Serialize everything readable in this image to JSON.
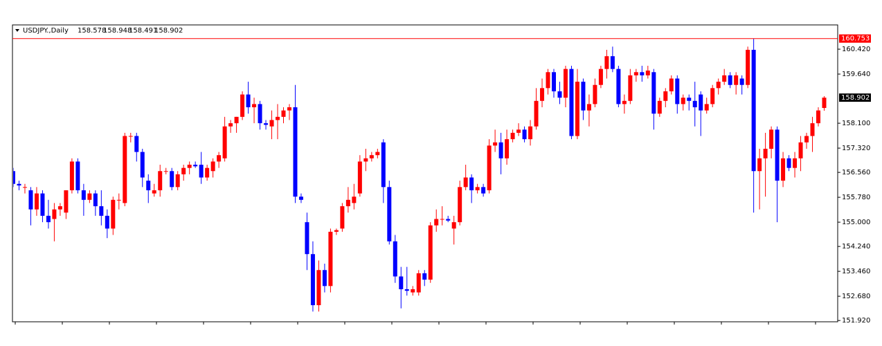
{
  "chart_data": {
    "type": "candlestick",
    "symbol": "USDJPY.,Daily",
    "up_color": "#ff0000",
    "down_color": "#0000ff",
    "ylim": [
      151.88,
      161.18
    ],
    "yticks": [
      {
        "value": 160.42,
        "label": "160.420"
      },
      {
        "value": 159.64,
        "label": "159.640"
      },
      {
        "value": 158.1,
        "label": "158.100"
      },
      {
        "value": 157.32,
        "label": "157.320"
      },
      {
        "value": 156.56,
        "label": "156.560"
      },
      {
        "value": 155.78,
        "label": "155.780"
      },
      {
        "value": 155,
        "label": "155.000"
      },
      {
        "value": 154.24,
        "label": "154.240"
      },
      {
        "value": 153.46,
        "label": "153.460"
      },
      {
        "value": 152.68,
        "label": "152.680"
      },
      {
        "value": 151.92,
        "label": "151.920"
      }
    ],
    "price_line": 160.753,
    "ohlc": [
      [
        156.6,
        156.7,
        156.1,
        156.2
      ],
      [
        156.2,
        156.3,
        156.0,
        156.15
      ],
      [
        156.1,
        156.2,
        155.9,
        156.1
      ],
      [
        156.0,
        156.1,
        154.9,
        155.4
      ],
      [
        155.4,
        156.1,
        155.2,
        155.9
      ],
      [
        155.9,
        156.0,
        155.0,
        155.2
      ],
      [
        155.2,
        155.7,
        154.8,
        155.0
      ],
      [
        155.1,
        155.6,
        154.4,
        155.4
      ],
      [
        155.4,
        155.6,
        155.2,
        155.5
      ],
      [
        155.3,
        156.0,
        155.1,
        156.0
      ],
      [
        156.0,
        157.0,
        155.9,
        156.9
      ],
      [
        156.9,
        157.0,
        155.9,
        156.0
      ],
      [
        156.0,
        156.2,
        155.2,
        155.7
      ],
      [
        155.7,
        156.0,
        155.6,
        155.9
      ],
      [
        155.9,
        156.0,
        155.2,
        155.5
      ],
      [
        155.5,
        156.0,
        154.9,
        155.2
      ],
      [
        155.2,
        155.4,
        154.5,
        154.8
      ],
      [
        154.8,
        155.8,
        154.6,
        155.7
      ],
      [
        155.7,
        155.9,
        155.4,
        155.7
      ],
      [
        155.6,
        157.8,
        155.5,
        157.7
      ],
      [
        157.7,
        157.8,
        157.5,
        157.7
      ],
      [
        157.7,
        157.8,
        156.9,
        157.2
      ],
      [
        157.2,
        157.3,
        156.1,
        156.4
      ],
      [
        156.3,
        156.5,
        155.6,
        156.0
      ],
      [
        155.9,
        156.2,
        155.8,
        156.0
      ],
      [
        156.0,
        156.8,
        155.8,
        156.6
      ],
      [
        156.6,
        156.7,
        156.5,
        156.6
      ],
      [
        156.6,
        156.7,
        156.0,
        156.1
      ],
      [
        156.1,
        156.6,
        156.0,
        156.5
      ],
      [
        156.5,
        156.8,
        156.3,
        156.7
      ],
      [
        156.7,
        156.9,
        156.5,
        156.8
      ],
      [
        156.8,
        156.9,
        156.7,
        156.75
      ],
      [
        156.8,
        157.2,
        156.2,
        156.4
      ],
      [
        156.4,
        156.8,
        156.3,
        156.7
      ],
      [
        156.6,
        157.0,
        156.4,
        156.9
      ],
      [
        156.9,
        157.2,
        156.7,
        157.1
      ],
      [
        157.0,
        158.3,
        156.9,
        158.0
      ],
      [
        158.0,
        158.2,
        157.8,
        158.1
      ],
      [
        158.1,
        158.3,
        157.8,
        158.3
      ],
      [
        158.3,
        159.1,
        158.2,
        159.0
      ],
      [
        159.0,
        159.4,
        158.4,
        158.6
      ],
      [
        158.6,
        158.9,
        158.1,
        158.7
      ],
      [
        158.7,
        158.8,
        157.9,
        158.1
      ],
      [
        158.1,
        158.2,
        157.9,
        158.05
      ],
      [
        158.0,
        158.5,
        157.6,
        158.2
      ],
      [
        158.2,
        158.7,
        157.6,
        158.3
      ],
      [
        158.3,
        158.6,
        158.1,
        158.5
      ],
      [
        158.5,
        158.7,
        158.2,
        158.6
      ],
      [
        158.6,
        159.3,
        155.6,
        155.8
      ],
      [
        155.8,
        155.9,
        155.6,
        155.7
      ],
      [
        155.0,
        155.3,
        153.5,
        154.0
      ],
      [
        154.0,
        154.4,
        152.2,
        152.4
      ],
      [
        152.4,
        153.8,
        152.2,
        153.5
      ],
      [
        153.5,
        153.7,
        152.8,
        153.0
      ],
      [
        153.0,
        154.8,
        152.8,
        154.7
      ],
      [
        154.7,
        154.8,
        154.6,
        154.75
      ],
      [
        154.8,
        155.6,
        154.7,
        155.5
      ],
      [
        155.5,
        156.1,
        155.3,
        155.7
      ],
      [
        155.6,
        156.2,
        155.4,
        155.8
      ],
      [
        155.9,
        157.1,
        155.8,
        156.9
      ],
      [
        156.9,
        157.3,
        156.6,
        157.0
      ],
      [
        157.0,
        157.2,
        156.9,
        157.1
      ],
      [
        157.1,
        157.3,
        157.0,
        157.2
      ],
      [
        157.5,
        157.6,
        155.6,
        156.1
      ],
      [
        156.1,
        156.3,
        154.3,
        154.4
      ],
      [
        154.4,
        154.6,
        153.1,
        153.3
      ],
      [
        153.3,
        153.6,
        152.3,
        152.9
      ],
      [
        152.9,
        153.6,
        152.7,
        152.85
      ],
      [
        152.8,
        153.0,
        152.7,
        152.9
      ],
      [
        152.8,
        153.5,
        152.7,
        153.4
      ],
      [
        153.4,
        153.5,
        153.0,
        153.2
      ],
      [
        153.2,
        155.0,
        153.1,
        154.9
      ],
      [
        154.9,
        155.4,
        154.7,
        155.1
      ],
      [
        155.1,
        155.5,
        154.9,
        155.1
      ],
      [
        155.1,
        155.2,
        155.0,
        155.05
      ],
      [
        154.8,
        155.2,
        154.3,
        155.0
      ],
      [
        155.0,
        156.3,
        154.9,
        156.1
      ],
      [
        156.1,
        156.8,
        156.0,
        156.4
      ],
      [
        156.4,
        156.5,
        155.6,
        156.0
      ],
      [
        156.0,
        156.2,
        155.9,
        156.1
      ],
      [
        156.1,
        156.2,
        155.8,
        155.9
      ],
      [
        156.0,
        157.6,
        155.9,
        157.4
      ],
      [
        157.4,
        157.9,
        157.2,
        157.5
      ],
      [
        157.5,
        157.8,
        156.5,
        157.0
      ],
      [
        157.0,
        157.9,
        156.8,
        157.6
      ],
      [
        157.6,
        157.9,
        157.5,
        157.8
      ],
      [
        157.8,
        158.1,
        157.7,
        157.9
      ],
      [
        157.9,
        158.0,
        157.5,
        157.6
      ],
      [
        157.6,
        158.2,
        157.4,
        158.0
      ],
      [
        158.0,
        159.2,
        157.9,
        158.8
      ],
      [
        158.8,
        159.5,
        158.6,
        159.2
      ],
      [
        159.2,
        159.8,
        159.0,
        159.7
      ],
      [
        159.7,
        159.8,
        158.9,
        159.1
      ],
      [
        159.1,
        159.4,
        158.7,
        158.9
      ],
      [
        158.9,
        159.9,
        158.6,
        159.8
      ],
      [
        159.8,
        159.9,
        157.6,
        157.7
      ],
      [
        157.7,
        159.8,
        157.6,
        159.4
      ],
      [
        159.4,
        159.5,
        158.2,
        158.5
      ],
      [
        158.5,
        159.0,
        158.0,
        158.7
      ],
      [
        158.7,
        159.5,
        158.6,
        159.3
      ],
      [
        159.3,
        159.9,
        159.2,
        159.8
      ],
      [
        159.8,
        160.4,
        159.5,
        160.2
      ],
      [
        160.2,
        160.5,
        159.7,
        159.8
      ],
      [
        159.8,
        159.9,
        158.6,
        158.7
      ],
      [
        158.7,
        159.0,
        158.4,
        158.8
      ],
      [
        158.8,
        159.8,
        158.7,
        159.6
      ],
      [
        159.6,
        159.8,
        159.4,
        159.7
      ],
      [
        159.7,
        159.9,
        159.4,
        159.6
      ],
      [
        159.6,
        159.9,
        159.5,
        159.75
      ],
      [
        159.7,
        159.8,
        157.9,
        158.4
      ],
      [
        158.4,
        158.9,
        158.3,
        158.8
      ],
      [
        158.8,
        159.2,
        158.6,
        159.1
      ],
      [
        159.1,
        159.6,
        159.0,
        159.5
      ],
      [
        159.5,
        159.6,
        158.4,
        158.7
      ],
      [
        158.7,
        159.0,
        158.5,
        158.9
      ],
      [
        158.9,
        159.0,
        158.5,
        158.8
      ],
      [
        158.8,
        159.4,
        158.0,
        158.6
      ],
      [
        159.0,
        159.1,
        157.7,
        158.5
      ],
      [
        158.5,
        158.9,
        158.4,
        158.7
      ],
      [
        158.7,
        159.3,
        158.6,
        159.2
      ],
      [
        159.2,
        159.5,
        159.0,
        159.4
      ],
      [
        159.4,
        159.8,
        159.3,
        159.6
      ],
      [
        159.6,
        159.7,
        159.2,
        159.3
      ],
      [
        159.3,
        159.7,
        159.0,
        159.6
      ],
      [
        159.5,
        159.6,
        159.0,
        159.3
      ],
      [
        159.3,
        160.5,
        159.2,
        160.4
      ],
      [
        160.4,
        160.75,
        155.3,
        156.6
      ],
      [
        156.6,
        157.3,
        155.4,
        157.0
      ],
      [
        157.0,
        157.8,
        155.8,
        157.3
      ],
      [
        157.3,
        158.0,
        157.0,
        157.9
      ],
      [
        157.9,
        158.0,
        155.0,
        156.3
      ],
      [
        156.3,
        157.2,
        156.1,
        157.0
      ],
      [
        157.0,
        157.1,
        156.6,
        156.7
      ],
      [
        156.7,
        157.2,
        156.4,
        157.0
      ],
      [
        157.0,
        157.7,
        156.6,
        157.5
      ],
      [
        157.5,
        157.8,
        157.3,
        157.7
      ],
      [
        157.7,
        158.3,
        157.2,
        158.1
      ],
      [
        158.1,
        158.6,
        158.0,
        158.5
      ],
      [
        158.578,
        158.948,
        158.491,
        158.902
      ]
    ]
  }
}
